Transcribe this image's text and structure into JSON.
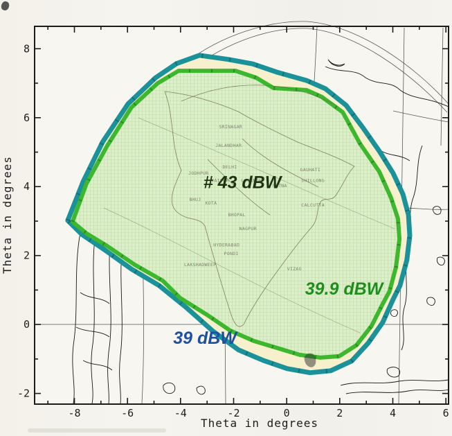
{
  "figure": {
    "kind": "scanned satellite EIRP footprint contour map over India",
    "frame_color": "#1b1b1b",
    "background_color": "#f4f2ec",
    "zero_line_color": "#8f948e"
  },
  "chart_data": {
    "type": "area",
    "subtype": "contour-footprint-map",
    "title": "",
    "xlabel": "Theta in degrees",
    "ylabel": "Theta in degrees",
    "x_range": [
      -9.5,
      6.1
    ],
    "y_range": [
      -2.31,
      8.65
    ],
    "x_major_ticks": [
      -8,
      -6,
      -4,
      -2,
      0,
      2,
      4,
      6
    ],
    "y_major_ticks": [
      8,
      6,
      4,
      2,
      0,
      -2
    ],
    "minor_tick_step": 1,
    "grid": false,
    "legend_position": "none",
    "contour_lines": [
      {
        "level_label": "39 dBW",
        "color": "#1b929a",
        "band_fill": "#f6f0cd",
        "points": [
          [
            -8.25,
            3.02
          ],
          [
            -7.67,
            4.15
          ],
          [
            -6.94,
            5.29
          ],
          [
            -5.98,
            6.4
          ],
          [
            -4.94,
            7.16
          ],
          [
            -4.15,
            7.57
          ],
          [
            -3.29,
            7.81
          ],
          [
            -2.2,
            7.69
          ],
          [
            -1.28,
            7.56
          ],
          [
            -0.37,
            7.32
          ],
          [
            0.75,
            7.08
          ],
          [
            1.46,
            6.84
          ],
          [
            2.24,
            6.36
          ],
          [
            2.89,
            5.69
          ],
          [
            3.49,
            5.03
          ],
          [
            4.01,
            4.39
          ],
          [
            4.38,
            3.78
          ],
          [
            4.59,
            3.18
          ],
          [
            4.64,
            2.58
          ],
          [
            4.53,
            1.87
          ],
          [
            4.27,
            1.13
          ],
          [
            4.01,
            0.73
          ],
          [
            3.62,
            0.06
          ],
          [
            3.07,
            -0.54
          ],
          [
            2.45,
            -1.06
          ],
          [
            1.66,
            -1.34
          ],
          [
            0.88,
            -1.4
          ],
          [
            0.02,
            -1.28
          ],
          [
            -0.89,
            -1.04
          ],
          [
            -1.81,
            -0.74
          ],
          [
            -2.77,
            -0.2
          ],
          [
            -3.81,
            0.51
          ],
          [
            -4.81,
            1.13
          ],
          [
            -5.85,
            1.61
          ],
          [
            -6.89,
            2.18
          ],
          [
            -7.73,
            2.62
          ]
        ]
      },
      {
        "level_label": "39.9 dBW",
        "color": "#3db82e",
        "area_fill": "#dcefc9",
        "grid_pattern_color": "#a0cc90",
        "points": [
          [
            -8.07,
            2.98
          ],
          [
            -7.55,
            4.08
          ],
          [
            -6.76,
            5.19
          ],
          [
            -5.85,
            6.3
          ],
          [
            -4.86,
            7.0
          ],
          [
            -4.07,
            7.36
          ],
          [
            -1.93,
            7.36
          ],
          [
            -1.15,
            7.16
          ],
          [
            -0.5,
            6.86
          ],
          [
            0.75,
            6.8
          ],
          [
            1.33,
            6.6
          ],
          [
            2.11,
            6.16
          ],
          [
            2.76,
            5.25
          ],
          [
            3.49,
            4.43
          ],
          [
            3.93,
            3.68
          ],
          [
            4.19,
            3.08
          ],
          [
            4.25,
            2.48
          ],
          [
            4.12,
            1.67
          ],
          [
            3.88,
            0.97
          ],
          [
            3.6,
            0.57
          ],
          [
            3.2,
            -0.04
          ],
          [
            2.63,
            -0.6
          ],
          [
            1.98,
            -0.92
          ],
          [
            1.27,
            -0.96
          ],
          [
            0.49,
            -0.88
          ],
          [
            -0.37,
            -0.68
          ],
          [
            -1.23,
            -0.48
          ],
          [
            -2.12,
            -0.18
          ],
          [
            -2.98,
            0.27
          ],
          [
            -4.02,
            0.77
          ],
          [
            -4.67,
            1.27
          ],
          [
            -5.72,
            1.73
          ],
          [
            -6.77,
            2.28
          ],
          [
            -7.54,
            2.64
          ]
        ]
      }
    ],
    "labels": [
      {
        "text": "# 43 dBW",
        "x": -1.67,
        "y": 3.95,
        "color": "#1e3312",
        "font_size": 25
      },
      {
        "text": "39.9 dBW",
        "x": 2.16,
        "y": 0.87,
        "color": "#1f8e1f",
        "font_size": 25
      },
      {
        "text": "39 dBW",
        "x": -3.08,
        "y": -0.56,
        "color": "#1d4fa6",
        "font_size": 25
      }
    ],
    "cities": [
      {
        "name": "SRINAGAR",
        "x": -2.11,
        "y": 5.69
      },
      {
        "name": "JALANDHAR",
        "x": -2.19,
        "y": 5.15
      },
      {
        "name": "DELHI",
        "x": -2.14,
        "y": 4.53
      },
      {
        "name": "JODHPUR",
        "x": -3.32,
        "y": 4.35
      },
      {
        "name": "JAIPUR",
        "x": -2.51,
        "y": 4.14
      },
      {
        "name": "LUCKNOW",
        "x": -1.33,
        "y": 4.14
      },
      {
        "name": "PATNA",
        "x": -0.26,
        "y": 3.98
      },
      {
        "name": "GAUHATI",
        "x": 0.89,
        "y": 4.45
      },
      {
        "name": "SHILLONG",
        "x": 0.99,
        "y": 4.14
      },
      {
        "name": "BHUJ",
        "x": -3.45,
        "y": 3.58
      },
      {
        "name": "KOTA",
        "x": -2.85,
        "y": 3.48
      },
      {
        "name": "BHOPAL",
        "x": -1.88,
        "y": 3.14
      },
      {
        "name": "CALCUTTA",
        "x": 0.99,
        "y": 3.42
      },
      {
        "name": "NAGPUR",
        "x": -1.46,
        "y": 2.74
      },
      {
        "name": "HYDERABAD",
        "x": -2.27,
        "y": 2.27
      },
      {
        "name": "PONDI",
        "x": -2.09,
        "y": 2.01
      },
      {
        "name": "LAKSHADWEEP",
        "x": -3.26,
        "y": 1.69
      },
      {
        "name": "VIZAG",
        "x": 0.29,
        "y": 1.57
      }
    ]
  }
}
